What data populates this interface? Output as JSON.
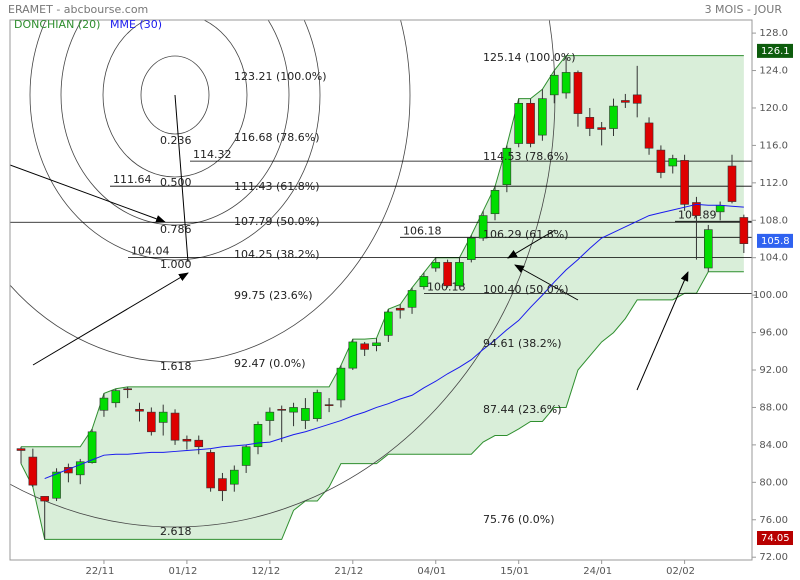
{
  "chart_data": {
    "type": "candlestick",
    "title": "ERAMET - abcbourse.com",
    "period": "3 MOIS - JOUR",
    "categories": [
      null,
      null,
      null,
      null,
      null,
      null,
      null,
      "22/11",
      null,
      null,
      null,
      null,
      null,
      null,
      "01/12",
      null,
      null,
      null,
      null,
      null,
      null,
      "12/12",
      null,
      null,
      null,
      null,
      null,
      null,
      "21/12",
      null,
      null,
      null,
      null,
      null,
      null,
      "04/01",
      null,
      null,
      null,
      null,
      null,
      null,
      "15/01",
      null,
      null,
      null,
      null,
      null,
      null,
      "24/01",
      null,
      null,
      null,
      null,
      null,
      null,
      "02/02",
      null,
      null,
      null,
      null,
      null
    ],
    "open": [
      83.6,
      82.7,
      78.5,
      78.3,
      81.6,
      80.8,
      82.1,
      87.7,
      88.5,
      90.0,
      87.8,
      87.5,
      86.4,
      87.4,
      84.6,
      84.5,
      83.2,
      80.4,
      79.8,
      81.8,
      83.8,
      86.6,
      87.8,
      87.5,
      86.6,
      86.8,
      88.3,
      88.8,
      92.2,
      94.8,
      94.6,
      95.7,
      98.6,
      98.7,
      100.9,
      102.9,
      103.5,
      101.0,
      103.8,
      106.1,
      108.7,
      111.8,
      116.2,
      120.5,
      117.1,
      121.4,
      121.6,
      123.8,
      119.0,
      117.9,
      117.8,
      120.8,
      121.4,
      118.4,
      115.5,
      113.8,
      114.4,
      109.9,
      102.9,
      108.9,
      113.8,
      108.3
    ],
    "high": [
      83.8,
      83.6,
      78.5,
      81.5,
      82.0,
      82.5,
      85.7,
      89.5,
      90.0,
      90.2,
      88.5,
      88.0,
      88.3,
      87.8,
      85.0,
      85.0,
      83.5,
      81.0,
      81.8,
      84.0,
      86.5,
      88.0,
      88.2,
      88.5,
      89.0,
      89.9,
      89.0,
      92.5,
      95.3,
      95.0,
      95.4,
      98.5,
      99.0,
      100.8,
      102.4,
      104.0,
      103.8,
      104.0,
      106.4,
      109.0,
      111.6,
      116.0,
      121.0,
      121.0,
      122.0,
      124.0,
      125.6,
      124.0,
      120.0,
      118.5,
      121.0,
      121.5,
      124.5,
      119.0,
      116.0,
      115.0,
      115.0,
      110.5,
      107.5,
      110.0,
      115.0,
      108.6
    ],
    "low": [
      82.0,
      79.5,
      73.9,
      78.0,
      80.0,
      79.8,
      82.0,
      87.0,
      88.0,
      89.0,
      86.5,
      85.0,
      85.0,
      84.0,
      83.5,
      83.0,
      79.0,
      78.0,
      79.0,
      81.0,
      83.0,
      85.0,
      84.3,
      86.0,
      85.7,
      86.5,
      87.5,
      88.0,
      92.0,
      93.5,
      94.0,
      95.0,
      97.5,
      98.0,
      100.6,
      102.5,
      100.8,
      100.8,
      103.5,
      105.8,
      108.0,
      111.0,
      115.8,
      115.8,
      116.5,
      120.5,
      121.0,
      118.0,
      117.0,
      116.0,
      117.0,
      120.0,
      119.0,
      115.0,
      112.5,
      113.0,
      109.0,
      103.8,
      102.5,
      108.0,
      109.8,
      104.5
    ],
    "close": [
      83.4,
      79.7,
      78.0,
      81.1,
      81.0,
      82.2,
      85.4,
      89.0,
      89.8,
      89.9,
      87.6,
      85.4,
      87.5,
      84.5,
      84.4,
      83.8,
      79.4,
      79.1,
      81.3,
      83.8,
      86.2,
      87.5,
      87.7,
      88.0,
      87.9,
      89.6,
      88.2,
      92.2,
      95.0,
      94.2,
      94.9,
      98.2,
      98.4,
      100.5,
      102.0,
      103.5,
      101.0,
      103.5,
      106.1,
      108.5,
      111.2,
      115.7,
      120.5,
      116.2,
      121.0,
      123.5,
      123.8,
      119.4,
      117.8,
      117.7,
      120.2,
      120.6,
      120.5,
      115.7,
      113.1,
      114.6,
      109.7,
      108.5,
      107.0,
      109.6,
      110.0,
      105.5
    ],
    "up_color": "#00dd00",
    "down_color": "#dd0000",
    "series": [
      {
        "name": "DONCHIAN (20)",
        "color": "#2f8f2f",
        "fill": "#d9eed9",
        "upper": [
          83.8,
          83.8,
          83.8,
          83.8,
          83.8,
          83.8,
          85.7,
          89.5,
          90.0,
          90.2,
          90.2,
          90.2,
          90.2,
          90.2,
          90.2,
          90.2,
          90.2,
          90.2,
          90.2,
          90.2,
          90.2,
          90.2,
          90.2,
          90.2,
          90.2,
          90.2,
          90.2,
          92.5,
          95.3,
          95.3,
          95.4,
          98.5,
          99.0,
          100.8,
          102.4,
          104.0,
          104.0,
          104.0,
          106.4,
          109.0,
          111.6,
          116.0,
          121.0,
          121.0,
          122.0,
          124.0,
          125.6,
          125.6,
          125.6,
          125.6,
          125.6,
          125.6,
          125.6,
          125.6,
          125.6,
          125.6,
          125.6,
          125.6,
          125.6,
          125.6,
          125.6,
          125.6
        ],
        "lower": [
          82.0,
          79.5,
          73.9,
          73.9,
          73.9,
          73.9,
          73.9,
          73.9,
          73.9,
          73.9,
          73.9,
          73.9,
          73.9,
          73.9,
          73.9,
          73.9,
          73.9,
          73.9,
          73.9,
          73.9,
          73.9,
          73.9,
          73.9,
          77.0,
          78.0,
          78.0,
          79.5,
          82.0,
          82.0,
          82.0,
          82.0,
          83.0,
          83.0,
          83.0,
          83.0,
          83.0,
          83.0,
          83.0,
          83.0,
          84.3,
          85.0,
          85.0,
          85.7,
          86.5,
          86.5,
          88.0,
          88.0,
          92.0,
          93.5,
          95.0,
          96.0,
          97.5,
          99.5,
          99.5,
          99.5,
          99.5,
          100.2,
          100.2,
          102.5,
          102.5,
          102.5,
          102.5
        ]
      },
      {
        "name": "MME (30)",
        "color": "#1a1aee",
        "values": [
          null,
          null,
          80.4,
          80.9,
          81.4,
          81.9,
          82.4,
          82.9,
          83.0,
          83.0,
          83.1,
          83.2,
          83.2,
          83.3,
          83.4,
          83.5,
          83.6,
          83.8,
          83.9,
          84.0,
          84.2,
          84.3,
          84.7,
          85.1,
          85.4,
          85.8,
          86.2,
          86.6,
          87.1,
          87.5,
          88.0,
          88.4,
          88.9,
          89.3,
          90.1,
          90.8,
          91.6,
          92.3,
          93.1,
          94.2,
          95.2,
          96.3,
          97.3,
          98.7,
          100.0,
          101.4,
          102.7,
          103.8,
          105.0,
          106.1,
          106.7,
          107.3,
          107.9,
          108.5,
          108.8,
          109.1,
          109.4,
          109.7,
          109.6,
          109.6,
          109.5,
          109.4
        ]
      }
    ],
    "ylim": [
      71.7,
      129.4
    ],
    "yticks": [
      {
        "value": 72,
        "label": "72.00"
      },
      {
        "value": 76,
        "label": "76.00"
      },
      {
        "value": 80,
        "label": "80.00"
      },
      {
        "value": 84,
        "label": "84.00"
      },
      {
        "value": 88,
        "label": "88.00"
      },
      {
        "value": 92,
        "label": "92.00"
      },
      {
        "value": 96,
        "label": "96.00"
      },
      {
        "value": 100,
        "label": "100.00"
      },
      {
        "value": 104,
        "label": "104.0"
      },
      {
        "value": 108,
        "label": "108.0"
      },
      {
        "value": 112,
        "label": "112.0"
      },
      {
        "value": 116,
        "label": "116.0"
      },
      {
        "value": 120,
        "label": "120.0"
      },
      {
        "value": 124,
        "label": "124.0"
      },
      {
        "value": 128,
        "label": "128.0"
      }
    ],
    "levels": [
      114.32,
      111.64,
      107.79,
      106.18,
      104.04,
      100.18,
      107.89
    ],
    "annotations": [
      "123.21 (100.0%)",
      "116.68 (78.6%)",
      "111.43 (61.8%)",
      "107.79 (50.0%)",
      "104.25 (38.2%)",
      "99.75 (23.6%)",
      "92.47 (0.0%)",
      "0.236",
      "0.500",
      "0.786",
      "1.000",
      "1.618",
      "2.618",
      "125.14 (100.0%)",
      "114.53 (78.6%)",
      "106.29 (61.8%)",
      "100.40 (50.0%)",
      "94.61 (38.2%)",
      "87.44 (23.6%)",
      "75.76 (0.0%)"
    ],
    "price_labels": [
      {
        "value": 126.1,
        "color": "#0d5c0d"
      },
      {
        "value": 105.8,
        "color": "#2f62f0"
      },
      {
        "value": 74.05,
        "color": "#b80000"
      }
    ],
    "grid": false
  }
}
